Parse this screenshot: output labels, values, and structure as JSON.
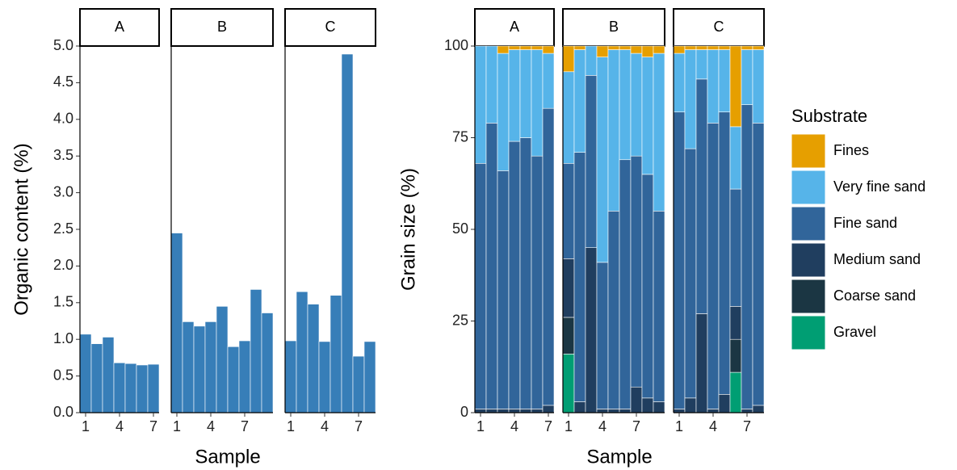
{
  "chart_data": [
    {
      "type": "bar",
      "ylabel": "Organic content (%)",
      "xlabel": "Sample",
      "color": "#377eb8",
      "ylim": [
        0,
        5
      ],
      "yticks": [
        {
          "value": 0,
          "label": "0.0"
        },
        0.5,
        {
          "value": 1,
          "label": "1.0"
        },
        1.5,
        {
          "value": 2,
          "label": "2.0"
        },
        2.5,
        {
          "value": 3,
          "label": "3.0"
        },
        3.5,
        {
          "value": 4,
          "label": "4.0"
        },
        4.5,
        {
          "value": 5,
          "label": "5.0"
        }
      ],
      "xticks": [
        1,
        4,
        7
      ],
      "facets": [
        {
          "label": "A",
          "x": [
            1,
            2,
            3,
            4,
            5,
            6,
            7
          ],
          "values": [
            1.07,
            0.94,
            1.03,
            0.68,
            0.67,
            0.65,
            0.66
          ]
        },
        {
          "label": "B",
          "x": [
            1,
            2,
            3,
            4,
            5,
            6,
            7,
            8,
            9
          ],
          "values": [
            2.45,
            1.24,
            1.18,
            1.24,
            1.45,
            0.9,
            0.98,
            1.68,
            1.36
          ]
        },
        {
          "label": "C",
          "x": [
            1,
            2,
            3,
            4,
            5,
            6,
            7,
            8
          ],
          "values": [
            0.98,
            1.65,
            1.48,
            0.97,
            1.6,
            4.89,
            0.77,
            0.97
          ]
        }
      ]
    },
    {
      "type": "stacked_bar",
      "ylabel": "Grain size (%)",
      "xlabel": "Sample",
      "ylim": [
        0,
        100
      ],
      "yticks": [
        0,
        25,
        50,
        75,
        100
      ],
      "xticks": [
        1,
        4,
        7
      ],
      "legend_title": "Substrate",
      "series": [
        {
          "name": "Fines",
          "color": "#e69f00"
        },
        {
          "name": "Very fine sand",
          "color": "#56b4e9"
        },
        {
          "name": "Fine sand",
          "color": "#31659a"
        },
        {
          "name": "Medium sand",
          "color": "#203e5f"
        },
        {
          "name": "Coarse sand",
          "color": "#1b3643"
        },
        {
          "name": "Gravel",
          "color": "#009e73"
        }
      ],
      "facets": [
        {
          "label": "A",
          "x": [
            1,
            2,
            3,
            4,
            5,
            6,
            7
          ],
          "series_values": [
            [
              0,
              0,
              2,
              1,
              1,
              1,
              2
            ],
            [
              32,
              21,
              32,
              25,
              24,
              29,
              15
            ],
            [
              67,
              78,
              65,
              73,
              74,
              69,
              81
            ],
            [
              1,
              1,
              1,
              1,
              1,
              1,
              2
            ],
            [
              0,
              0,
              0,
              0,
              0,
              0,
              0
            ],
            [
              0,
              0,
              0,
              0,
              0,
              0,
              0
            ]
          ]
        },
        {
          "label": "B",
          "x": [
            1,
            2,
            3,
            4,
            5,
            6,
            7,
            8,
            9
          ],
          "series_values": [
            [
              7,
              1,
              0,
              3,
              1,
              1,
              2,
              3,
              2
            ],
            [
              25,
              28,
              8,
              56,
              44,
              30,
              28,
              32,
              43
            ],
            [
              26,
              68,
              47,
              40,
              54,
              68,
              63,
              61,
              52
            ],
            [
              16,
              3,
              45,
              1,
              1,
              1,
              7,
              4,
              3
            ],
            [
              10,
              0,
              0,
              0,
              0,
              0,
              0,
              0,
              0
            ],
            [
              16,
              0,
              0,
              0,
              0,
              0,
              0,
              0,
              0
            ]
          ]
        },
        {
          "label": "C",
          "x": [
            1,
            2,
            3,
            4,
            5,
            6,
            7,
            8
          ],
          "series_values": [
            [
              2,
              1,
              1,
              1,
              1,
              22,
              1,
              1
            ],
            [
              16,
              27,
              8,
              20,
              17,
              17,
              15,
              20
            ],
            [
              81,
              68,
              64,
              78,
              77,
              32,
              83,
              77
            ],
            [
              1,
              4,
              27,
              1,
              5,
              9,
              1,
              2
            ],
            [
              0,
              0,
              0,
              0,
              0,
              9,
              0,
              0
            ],
            [
              0,
              0,
              0,
              0,
              0,
              11,
              0,
              0
            ]
          ]
        }
      ]
    }
  ]
}
